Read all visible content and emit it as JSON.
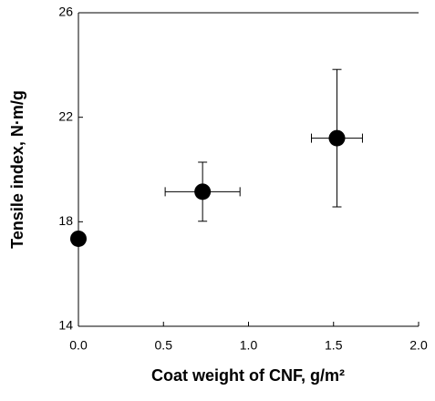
{
  "chart_data": {
    "type": "scatter",
    "x_label": "Coat weight of CNF, g/m²",
    "y_label": "Tensile index, N·m/g",
    "series": [
      {
        "color": "#000000",
        "x": [
          0,
          0.73,
          1.52
        ],
        "values": [
          17.35,
          19.15,
          21.2
        ],
        "xerr": [
          null,
          0.22,
          0.15
        ],
        "yerr": [
          null,
          1.13,
          2.63
        ]
      }
    ],
    "xlim": [
      0,
      2
    ],
    "ylim": [
      14,
      26
    ],
    "xticks": [
      {
        "value": 0,
        "label": "0.0"
      },
      {
        "value": 0.5,
        "label": "0.5"
      },
      {
        "value": 1,
        "label": "1.0"
      },
      {
        "value": 1.5,
        "label": "1.5"
      },
      {
        "value": 2,
        "label": "2.0"
      }
    ],
    "yticks": [
      14,
      18,
      22,
      26
    ]
  }
}
